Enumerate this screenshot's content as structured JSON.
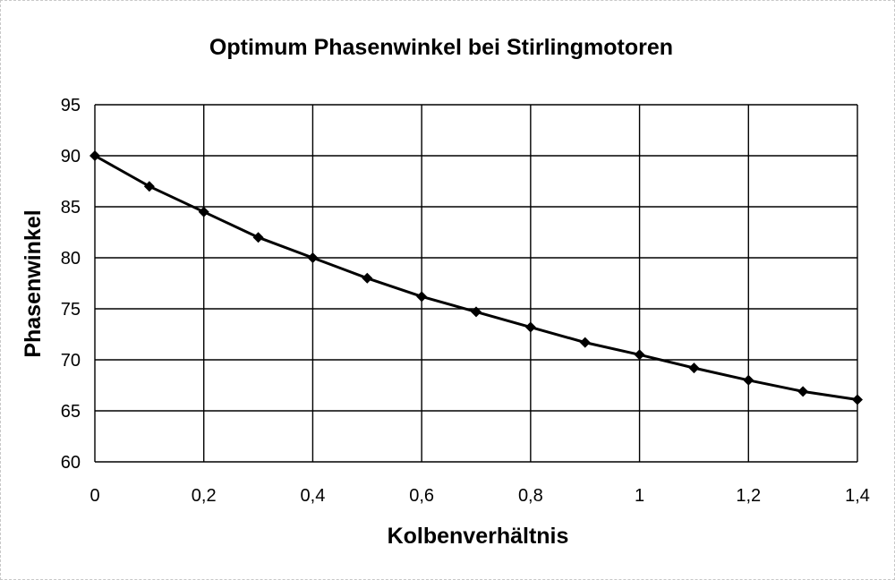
{
  "chart_data": {
    "type": "line",
    "title": "Optimum Phasenwinkel bei Stirlingmotoren",
    "xlabel": "Kolbenverhältnis",
    "ylabel": "Phasenwinkel",
    "xlim": [
      0,
      1.4
    ],
    "ylim": [
      60,
      95
    ],
    "x_ticks": [
      0,
      0.2,
      0.4,
      0.6,
      0.8,
      1,
      1.2,
      1.4
    ],
    "x_tick_labels": [
      "0",
      "0,2",
      "0,4",
      "0,6",
      "0,8",
      "1",
      "1,2",
      "1,4"
    ],
    "y_ticks": [
      60,
      65,
      70,
      75,
      80,
      85,
      90,
      95
    ],
    "y_tick_labels": [
      "60",
      "65",
      "70",
      "75",
      "80",
      "85",
      "90",
      "95"
    ],
    "grid": true,
    "legend": "none",
    "marker": "diamond",
    "color": "#000000",
    "x": [
      0,
      0.1,
      0.2,
      0.3,
      0.4,
      0.5,
      0.6,
      0.7,
      0.8,
      0.9,
      1.0,
      1.1,
      1.2,
      1.3,
      1.4
    ],
    "y": [
      90,
      87,
      84.5,
      82,
      80,
      78,
      76.2,
      74.7,
      73.2,
      71.7,
      70.5,
      69.2,
      68,
      66.9,
      66.1
    ]
  }
}
